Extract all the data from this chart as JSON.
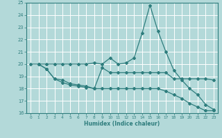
{
  "bg_color": "#b3d9d9",
  "grid_color": "#ffffff",
  "line_color": "#2e7d7d",
  "xlabel": "Humidex (Indice chaleur)",
  "ylim": [
    16,
    25
  ],
  "xlim": [
    -0.5,
    23.5
  ],
  "yticks": [
    16,
    17,
    18,
    19,
    20,
    21,
    22,
    23,
    24,
    25
  ],
  "xticks": [
    0,
    1,
    2,
    3,
    4,
    5,
    6,
    7,
    8,
    9,
    10,
    11,
    12,
    13,
    14,
    15,
    16,
    17,
    18,
    19,
    20,
    21,
    22,
    23
  ],
  "line1_x": [
    0,
    1,
    2,
    3,
    4,
    5,
    6,
    7,
    8,
    9,
    10,
    11,
    12,
    13,
    14,
    15,
    16,
    17,
    18,
    19,
    20,
    21,
    22,
    23
  ],
  "line1_y": [
    20.0,
    20.0,
    20.0,
    20.0,
    20.0,
    20.0,
    20.0,
    20.0,
    20.1,
    20.0,
    20.5,
    20.0,
    20.1,
    20.5,
    22.5,
    24.8,
    22.7,
    21.0,
    19.5,
    18.7,
    18.0,
    17.5,
    16.7,
    16.3
  ],
  "line2_x": [
    1,
    2,
    3,
    4,
    5,
    6,
    7,
    8,
    9,
    10,
    11,
    12,
    13,
    14,
    15,
    16,
    17,
    18,
    19,
    20,
    21,
    22,
    23
  ],
  "line2_y": [
    20.0,
    19.6,
    18.8,
    18.7,
    18.4,
    18.3,
    18.2,
    18.0,
    19.7,
    19.3,
    19.3,
    19.3,
    19.3,
    19.3,
    19.3,
    19.3,
    19.3,
    18.8,
    18.8,
    18.8,
    18.8,
    18.8,
    18.7
  ],
  "line3_x": [
    1,
    2,
    3,
    4,
    5,
    6,
    7,
    8,
    9,
    10,
    11,
    12,
    13,
    14,
    15,
    16,
    17,
    18,
    19,
    20,
    21,
    22,
    23
  ],
  "line3_y": [
    20.0,
    19.6,
    18.8,
    18.5,
    18.3,
    18.2,
    18.1,
    18.0,
    18.0,
    18.0,
    18.0,
    18.0,
    18.0,
    18.0,
    18.0,
    18.0,
    17.8,
    17.5,
    17.2,
    16.8,
    16.5,
    16.2,
    16.2
  ]
}
